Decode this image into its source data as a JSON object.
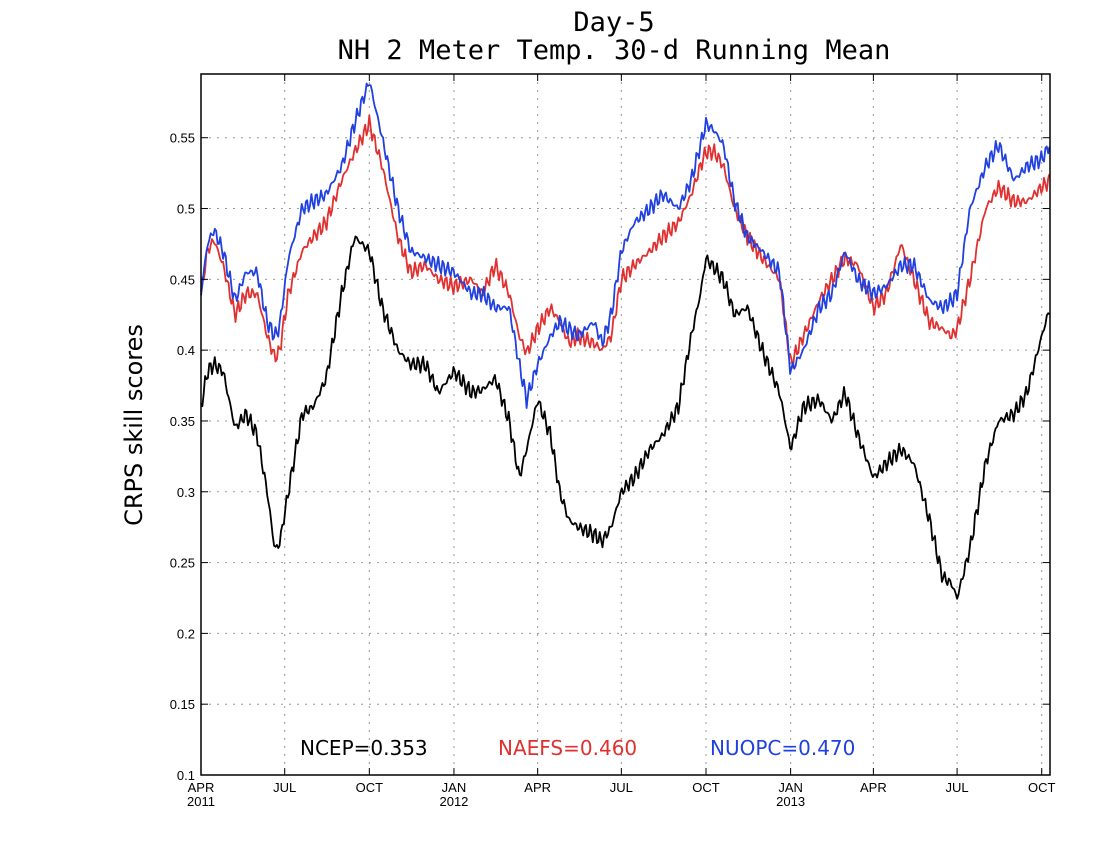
{
  "chart_data": {
    "type": "line",
    "title": [
      "Day-5",
      "NH 2 Meter Temp. 30-d Running Mean"
    ],
    "xlabel": "",
    "ylabel": "CRPS skill scores",
    "ylim": [
      0.1,
      0.595
    ],
    "yticks": [
      0.1,
      0.15,
      0.2,
      0.25,
      0.3,
      0.35,
      0.4,
      0.45,
      0.5,
      0.55
    ],
    "ytick_labels": [
      "0.1",
      "0.15",
      "0.2",
      "0.25",
      "0.3",
      "0.35",
      "0.4",
      "0.45",
      "0.5",
      "0.55"
    ],
    "x_range": [
      "2011-04-01",
      "2013-10-10"
    ],
    "xticks": [
      {
        "date": "2011-04-01",
        "label": "APR",
        "sub": "2011"
      },
      {
        "date": "2011-07-01",
        "label": "JUL",
        "sub": ""
      },
      {
        "date": "2011-10-01",
        "label": "OCT",
        "sub": ""
      },
      {
        "date": "2012-01-01",
        "label": "JAN",
        "sub": "2012"
      },
      {
        "date": "2012-04-01",
        "label": "APR",
        "sub": ""
      },
      {
        "date": "2012-07-01",
        "label": "JUL",
        "sub": ""
      },
      {
        "date": "2012-10-01",
        "label": "OCT",
        "sub": ""
      },
      {
        "date": "2013-01-01",
        "label": "JAN",
        "sub": "2013"
      },
      {
        "date": "2013-04-01",
        "label": "APR",
        "sub": ""
      },
      {
        "date": "2013-07-01",
        "label": "JUL",
        "sub": ""
      },
      {
        "date": "2013-10-01",
        "label": "OCT",
        "sub": ""
      }
    ],
    "grid": true,
    "legend_placement": "bottom-center",
    "series": [
      {
        "name": "NCEP",
        "legend_text": "NCEP=0.353",
        "color": "#000000",
        "x": [
          "2011-04-01",
          "2011-04-08",
          "2011-04-15",
          "2011-04-25",
          "2011-05-08",
          "2011-05-20",
          "2011-06-01",
          "2011-06-12",
          "2011-06-20",
          "2011-06-25",
          "2011-07-05",
          "2011-07-20",
          "2011-08-01",
          "2011-08-15",
          "2011-09-01",
          "2011-09-15",
          "2011-10-01",
          "2011-10-15",
          "2011-11-01",
          "2011-11-15",
          "2011-12-01",
          "2011-12-15",
          "2012-01-01",
          "2012-01-20",
          "2012-02-01",
          "2012-02-15",
          "2012-03-01",
          "2012-03-12",
          "2012-03-20",
          "2012-04-01",
          "2012-04-15",
          "2012-04-25",
          "2012-05-05",
          "2012-05-15",
          "2012-06-01",
          "2012-06-10",
          "2012-06-20",
          "2012-07-01",
          "2012-07-15",
          "2012-08-01",
          "2012-08-15",
          "2012-09-01",
          "2012-09-15",
          "2012-09-25",
          "2012-10-01",
          "2012-10-10",
          "2012-10-20",
          "2012-11-01",
          "2012-11-15",
          "2012-12-01",
          "2012-12-20",
          "2013-01-01",
          "2013-01-15",
          "2013-02-01",
          "2013-02-15",
          "2013-03-01",
          "2013-03-15",
          "2013-04-01",
          "2013-04-15",
          "2013-05-01",
          "2013-05-15",
          "2013-06-01",
          "2013-06-15",
          "2013-06-25",
          "2013-07-01",
          "2013-07-15",
          "2013-08-01",
          "2013-08-15",
          "2013-09-01",
          "2013-09-15",
          "2013-10-01",
          "2013-10-10"
        ],
        "y": [
          0.36,
          0.385,
          0.39,
          0.385,
          0.345,
          0.355,
          0.34,
          0.3,
          0.26,
          0.262,
          0.3,
          0.355,
          0.36,
          0.38,
          0.44,
          0.48,
          0.47,
          0.43,
          0.4,
          0.39,
          0.39,
          0.37,
          0.385,
          0.37,
          0.372,
          0.38,
          0.35,
          0.31,
          0.33,
          0.365,
          0.34,
          0.3,
          0.28,
          0.275,
          0.27,
          0.265,
          0.275,
          0.3,
          0.31,
          0.33,
          0.34,
          0.36,
          0.41,
          0.44,
          0.465,
          0.458,
          0.45,
          0.425,
          0.43,
          0.4,
          0.37,
          0.33,
          0.36,
          0.365,
          0.35,
          0.37,
          0.34,
          0.31,
          0.32,
          0.33,
          0.32,
          0.28,
          0.24,
          0.235,
          0.225,
          0.26,
          0.32,
          0.35,
          0.355,
          0.37,
          0.41,
          0.43
        ]
      },
      {
        "name": "NAEFS",
        "legend_text": "NAEFS=0.460",
        "color": "#e03030",
        "x": [
          "2011-04-01",
          "2011-04-08",
          "2011-04-15",
          "2011-04-25",
          "2011-05-08",
          "2011-05-20",
          "2011-06-01",
          "2011-06-12",
          "2011-06-20",
          "2011-06-25",
          "2011-07-05",
          "2011-07-20",
          "2011-08-01",
          "2011-08-15",
          "2011-09-01",
          "2011-09-15",
          "2011-10-01",
          "2011-10-15",
          "2011-11-01",
          "2011-11-15",
          "2011-12-01",
          "2011-12-15",
          "2012-01-01",
          "2012-01-20",
          "2012-02-01",
          "2012-02-15",
          "2012-03-01",
          "2012-03-12",
          "2012-03-20",
          "2012-04-01",
          "2012-04-15",
          "2012-04-25",
          "2012-05-05",
          "2012-05-15",
          "2012-06-01",
          "2012-06-10",
          "2012-06-20",
          "2012-07-01",
          "2012-07-15",
          "2012-08-01",
          "2012-08-15",
          "2012-09-01",
          "2012-09-15",
          "2012-09-25",
          "2012-10-01",
          "2012-10-10",
          "2012-10-20",
          "2012-11-01",
          "2012-11-15",
          "2012-12-01",
          "2012-12-20",
          "2013-01-01",
          "2013-01-15",
          "2013-02-01",
          "2013-02-15",
          "2013-03-01",
          "2013-03-15",
          "2013-04-01",
          "2013-04-15",
          "2013-05-01",
          "2013-05-15",
          "2013-06-01",
          "2013-06-15",
          "2013-06-25",
          "2013-07-01",
          "2013-07-15",
          "2013-08-01",
          "2013-08-15",
          "2013-09-01",
          "2013-09-15",
          "2013-10-01",
          "2013-10-10"
        ],
        "y": [
          0.44,
          0.47,
          0.478,
          0.46,
          0.425,
          0.44,
          0.44,
          0.41,
          0.395,
          0.398,
          0.44,
          0.47,
          0.48,
          0.49,
          0.52,
          0.54,
          0.56,
          0.53,
          0.48,
          0.455,
          0.46,
          0.45,
          0.445,
          0.45,
          0.44,
          0.46,
          0.44,
          0.41,
          0.398,
          0.415,
          0.43,
          0.42,
          0.405,
          0.41,
          0.405,
          0.4,
          0.41,
          0.45,
          0.46,
          0.47,
          0.48,
          0.49,
          0.51,
          0.53,
          0.54,
          0.54,
          0.53,
          0.5,
          0.48,
          0.465,
          0.45,
          0.39,
          0.41,
          0.435,
          0.45,
          0.465,
          0.46,
          0.43,
          0.44,
          0.475,
          0.45,
          0.42,
          0.415,
          0.41,
          0.415,
          0.45,
          0.5,
          0.515,
          0.505,
          0.505,
          0.515,
          0.52
        ]
      },
      {
        "name": "NUOPC",
        "legend_text": "NUOPC=0.470",
        "color": "#2040e0",
        "x": [
          "2011-04-01",
          "2011-04-08",
          "2011-04-15",
          "2011-04-25",
          "2011-05-08",
          "2011-05-20",
          "2011-06-01",
          "2011-06-12",
          "2011-06-20",
          "2011-06-25",
          "2011-07-05",
          "2011-07-20",
          "2011-08-01",
          "2011-08-15",
          "2011-09-01",
          "2011-09-15",
          "2011-10-01",
          "2011-10-15",
          "2011-11-01",
          "2011-11-15",
          "2011-12-01",
          "2011-12-15",
          "2012-01-01",
          "2012-01-20",
          "2012-02-01",
          "2012-02-15",
          "2012-03-01",
          "2012-03-12",
          "2012-03-20",
          "2012-04-01",
          "2012-04-15",
          "2012-04-25",
          "2012-05-05",
          "2012-05-15",
          "2012-06-01",
          "2012-06-10",
          "2012-06-20",
          "2012-07-01",
          "2012-07-15",
          "2012-08-01",
          "2012-08-15",
          "2012-09-01",
          "2012-09-15",
          "2012-09-25",
          "2012-10-01",
          "2012-10-10",
          "2012-10-20",
          "2012-11-01",
          "2012-11-15",
          "2012-12-01",
          "2012-12-20",
          "2013-01-01",
          "2013-01-15",
          "2013-02-01",
          "2013-02-15",
          "2013-03-01",
          "2013-03-15",
          "2013-04-01",
          "2013-04-15",
          "2013-05-01",
          "2013-05-15",
          "2013-06-01",
          "2013-06-15",
          "2013-06-25",
          "2013-07-01",
          "2013-07-15",
          "2013-08-01",
          "2013-08-15",
          "2013-09-01",
          "2013-09-15",
          "2013-10-01",
          "2013-10-10"
        ],
        "y": [
          0.44,
          0.475,
          0.485,
          0.47,
          0.435,
          0.455,
          0.455,
          0.42,
          0.41,
          0.415,
          0.465,
          0.5,
          0.505,
          0.51,
          0.53,
          0.56,
          0.59,
          0.55,
          0.5,
          0.47,
          0.465,
          0.46,
          0.455,
          0.44,
          0.44,
          0.43,
          0.43,
          0.39,
          0.365,
          0.39,
          0.41,
          0.42,
          0.415,
          0.41,
          0.42,
          0.405,
          0.425,
          0.47,
          0.49,
          0.5,
          0.51,
          0.5,
          0.52,
          0.545,
          0.56,
          0.555,
          0.545,
          0.505,
          0.48,
          0.47,
          0.455,
          0.385,
          0.4,
          0.43,
          0.44,
          0.47,
          0.45,
          0.44,
          0.445,
          0.46,
          0.46,
          0.435,
          0.43,
          0.435,
          0.44,
          0.5,
          0.53,
          0.545,
          0.52,
          0.53,
          0.535,
          0.545
        ]
      }
    ]
  }
}
